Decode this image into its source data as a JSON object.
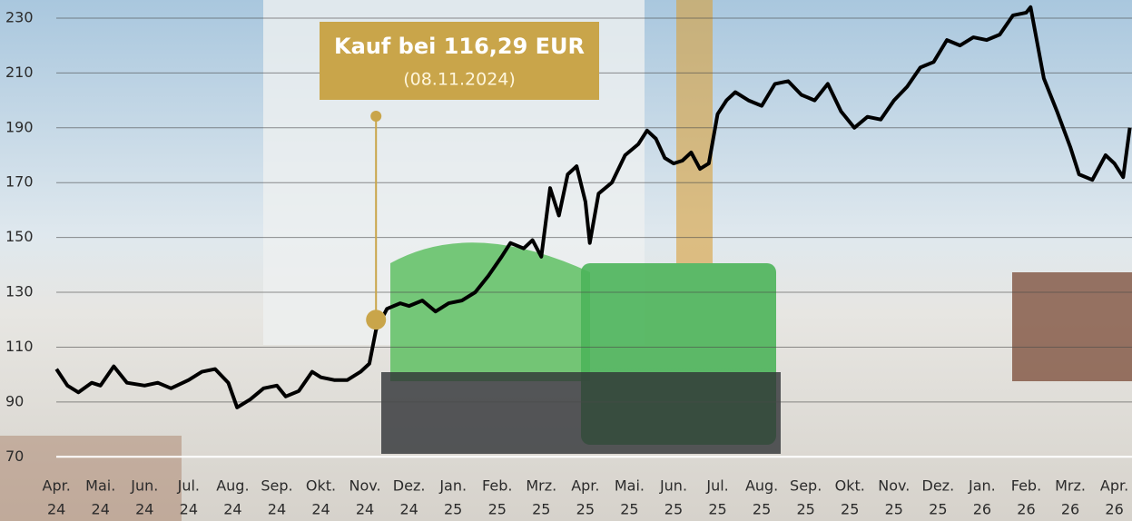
{
  "chart_data": {
    "type": "line",
    "annotation": {
      "title": "Kauf bei 116,29 EUR",
      "date": "(08.11.2024)",
      "x": 7.25,
      "y": 120,
      "color": "#c9a54a"
    },
    "categories": [
      [
        "Apr.",
        "24"
      ],
      [
        "Mai.",
        "24"
      ],
      [
        "Jun.",
        "24"
      ],
      [
        "Jul.",
        "24"
      ],
      [
        "Aug.",
        "24"
      ],
      [
        "Sep.",
        "24"
      ],
      [
        "Okt.",
        "24"
      ],
      [
        "Nov.",
        "24"
      ],
      [
        "Dez.",
        "24"
      ],
      [
        "Jan.",
        "25"
      ],
      [
        "Feb.",
        "25"
      ],
      [
        "Mrz.",
        "25"
      ],
      [
        "Apr.",
        "25"
      ],
      [
        "Mai.",
        "25"
      ],
      [
        "Jun.",
        "25"
      ],
      [
        "Jul.",
        "25"
      ],
      [
        "Aug.",
        "25"
      ],
      [
        "Sep.",
        "25"
      ],
      [
        "Okt.",
        "25"
      ],
      [
        "Nov.",
        "25"
      ],
      [
        "Dez.",
        "25"
      ],
      [
        "Jan.",
        "26"
      ],
      [
        "Feb.",
        "26"
      ],
      [
        "Mrz.",
        "26"
      ],
      [
        "Apr.",
        "26"
      ]
    ],
    "xlim": [
      -1.28,
      24.4
    ],
    "ylim": [
      70,
      236.6
    ],
    "yticks": [
      70,
      90,
      110,
      130,
      150,
      170,
      190,
      210,
      230
    ],
    "grid": true,
    "series": [
      {
        "color": "#000000",
        "x": [
          0,
          0.25,
          0.5,
          0.8,
          1.0,
          1.3,
          1.6,
          2.0,
          2.3,
          2.6,
          3.0,
          3.3,
          3.6,
          3.9,
          4.1,
          4.4,
          4.7,
          5.0,
          5.2,
          5.5,
          5.8,
          6.0,
          6.3,
          6.6,
          6.9,
          7.1,
          7.25,
          7.5,
          7.8,
          8.0,
          8.3,
          8.6,
          8.9,
          9.2,
          9.5,
          9.8,
          10.1,
          10.3,
          10.6,
          10.8,
          11.0,
          11.2,
          11.4,
          11.6,
          11.8,
          12.0,
          12.1,
          12.3,
          12.6,
          12.9,
          13.2,
          13.4,
          13.6,
          13.8,
          14.0,
          14.2,
          14.4,
          14.6,
          14.8,
          15.0,
          15.2,
          15.4,
          15.7,
          16.0,
          16.3,
          16.6,
          16.9,
          17.2,
          17.5,
          17.8,
          18.1,
          18.4,
          18.7,
          19.0,
          19.3,
          19.6,
          19.9,
          20.2,
          20.5,
          20.8,
          21.1,
          21.4,
          21.7,
          22.0,
          22.1,
          22.4,
          22.7,
          23.0,
          23.2,
          23.5,
          23.8,
          24.0,
          24.2,
          24.35
        ],
        "values": [
          102,
          96,
          93.5,
          97,
          96,
          103,
          97,
          96,
          97,
          95,
          98,
          101,
          102,
          97,
          88,
          91,
          95,
          96,
          92,
          94,
          101,
          99,
          98,
          98,
          101,
          104,
          116.29,
          124,
          126,
          125,
          127,
          123,
          126,
          127,
          130,
          136,
          143,
          148,
          146,
          149,
          143,
          168,
          158,
          173,
          176,
          163,
          148,
          166,
          170,
          180,
          184,
          189,
          186,
          179,
          177,
          178,
          181,
          175,
          177,
          195,
          200,
          203,
          200,
          198,
          206,
          207,
          202,
          200,
          206,
          196,
          190,
          194,
          193,
          200,
          205,
          212,
          214,
          222,
          220,
          223,
          222,
          224,
          231,
          232,
          234,
          208,
          196,
          183,
          173,
          171,
          180,
          177,
          172,
          190
        ]
      }
    ]
  }
}
